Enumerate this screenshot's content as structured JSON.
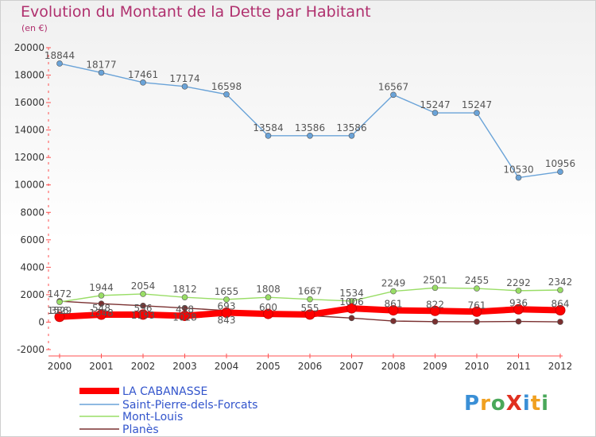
{
  "chart_data": {
    "type": "line",
    "title": "Evolution du Montant de la Dette par Habitant",
    "subtitle": "(en €)",
    "x": [
      "2000",
      "2001",
      "2002",
      "2003",
      "2004",
      "2005",
      "2006",
      "2007",
      "2008",
      "2009",
      "2010",
      "2011",
      "2012"
    ],
    "ylim": [
      -2000,
      20000
    ],
    "yticks": [
      -2000,
      0,
      2000,
      4000,
      6000,
      8000,
      10000,
      12000,
      14000,
      16000,
      18000,
      20000
    ],
    "grid": false,
    "legend_position": "bottom-left",
    "series": [
      {
        "name": "LA CABANASSE",
        "color": "#ff0000",
        "values": [
          386,
          548,
          556,
          458,
          693,
          600,
          555,
          1006,
          861,
          822,
          761,
          936,
          864
        ],
        "labels": [
          "386",
          "548",
          "556",
          "458",
          "693",
          "600",
          "555",
          "1006",
          "861",
          "822",
          "761",
          "936",
          "864"
        ]
      },
      {
        "name": "Saint-Pierre-dels-Forcats",
        "color": "#6aa3d8",
        "values": [
          18844,
          18177,
          17461,
          17174,
          16598,
          13584,
          13586,
          13586,
          16567,
          15247,
          15247,
          10530,
          10956
        ],
        "labels": [
          "18844",
          "18177",
          "17461",
          "17174",
          "16598",
          "13584",
          "13586",
          "13586",
          "16567",
          "15247",
          "15247",
          "10530",
          "10956"
        ]
      },
      {
        "name": "Mont-Louis",
        "color": "#99dd66",
        "values": [
          1472,
          1944,
          2054,
          1812,
          1655,
          1808,
          1667,
          1534,
          2249,
          2501,
          2455,
          2292,
          2342
        ],
        "labels": [
          "1472",
          "1944",
          "2054",
          "1812",
          "1655",
          "1808",
          "1667",
          "1534",
          "2249",
          "2501",
          "2455",
          "2292",
          "2342"
        ]
      },
      {
        "name": "Planès",
        "color": "#7a3030",
        "values": [
          1529,
          1348,
          1193,
          1028,
          843,
          700,
          475,
          300,
          80,
          40,
          30,
          50,
          20
        ],
        "labels": [
          "1529",
          "1348",
          "1193",
          "1028",
          "843",
          "",
          "",
          "",
          "",
          "",
          "",
          "",
          ""
        ]
      }
    ]
  },
  "logo": {
    "text": "ProXiti"
  }
}
